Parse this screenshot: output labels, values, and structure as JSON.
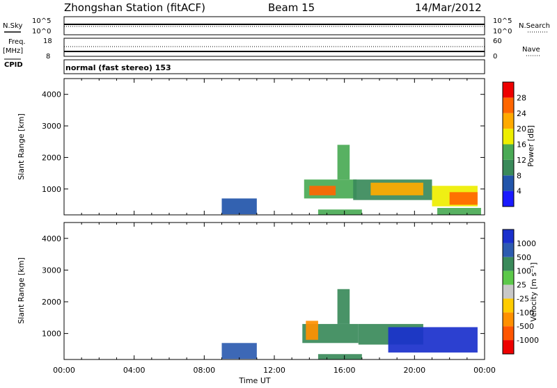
{
  "header": {
    "station": "Zhongshan Station (fitACF)",
    "beam": "Beam 15",
    "date": "14/Mar/2012"
  },
  "status_panels": {
    "nsky_label": "N.Sky",
    "noise_ticks": [
      "10^5",
      "10^0"
    ],
    "nsearch_label": "N.Search",
    "freq_label_line1": "Freq.",
    "freq_label_line2": "[MHz]",
    "freq_ticks": [
      "18",
      "8"
    ],
    "nave_ticks": [
      "60",
      "0"
    ],
    "nave_label": "Nave",
    "cpid_label": "CPID",
    "cpid_value": "normal (fast stereo) 153"
  },
  "colorbars": {
    "power": {
      "label": "Power [dB]",
      "ticks": [
        "4",
        "8",
        "12",
        "16",
        "20",
        "24",
        "28"
      ],
      "colors": [
        "#1a1aff",
        "#2255aa",
        "#3a8a5a",
        "#4aaa55",
        "#eeee00",
        "#ffaa00",
        "#ff6600",
        "#ee0000"
      ]
    },
    "velocity": {
      "label": "Velocity [m s⁻¹]",
      "ticks": [
        "1000",
        "500",
        "100",
        "25",
        "-25",
        "-100",
        "-500",
        "-1000"
      ],
      "colors": [
        "#1a30cc",
        "#2d5bb0",
        "#3a8a5a",
        "#5cc84a",
        "#c8c8c8",
        "#ffcc00",
        "#ff9000",
        "#ff5500",
        "#ee0000"
      ]
    }
  },
  "axes": {
    "ylabel": "Slant Range [km]",
    "xlabel": "Time UT",
    "yticks": [
      "1000",
      "2000",
      "3000",
      "4000"
    ],
    "xticks": [
      "00:00",
      "04:00",
      "08:00",
      "12:00",
      "16:00",
      "20:00",
      "00:00"
    ]
  },
  "chart_data": [
    {
      "type": "heatmap",
      "name": "power",
      "xlabel": "Time UT",
      "ylabel": "Slant Range [km]",
      "xlim": [
        0,
        24
      ],
      "ylim": [
        180,
        4500
      ],
      "colorbar": "Power [dB]",
      "blocks": [
        {
          "t0": 13.7,
          "t1": 16.7,
          "r0": 700,
          "r1": 1300,
          "v": 14
        },
        {
          "t0": 14.0,
          "t1": 15.5,
          "r0": 800,
          "r1": 1100,
          "v": 24
        },
        {
          "t0": 16.5,
          "t1": 21.0,
          "r0": 650,
          "r1": 1300,
          "v": 10
        },
        {
          "t0": 17.5,
          "t1": 20.5,
          "r0": 800,
          "r1": 1200,
          "v": 22
        },
        {
          "t0": 21.0,
          "t1": 23.6,
          "r0": 450,
          "r1": 1100,
          "v": 16
        },
        {
          "t0": 22.0,
          "t1": 23.6,
          "r0": 500,
          "r1": 900,
          "v": 26
        },
        {
          "t0": 15.6,
          "t1": 16.3,
          "r0": 1300,
          "r1": 2400,
          "v": 12
        },
        {
          "t0": 14.5,
          "t1": 17.0,
          "r0": 180,
          "r1": 350,
          "v": 12
        },
        {
          "t0": 21.3,
          "t1": 23.8,
          "r0": 180,
          "r1": 400,
          "v": 12
        },
        {
          "t0": 9.0,
          "t1": 11.0,
          "r0": 200,
          "r1": 700,
          "v": 6
        }
      ]
    },
    {
      "type": "heatmap",
      "name": "velocity",
      "xlabel": "Time UT",
      "ylabel": "Slant Range [km]",
      "xlim": [
        0,
        24
      ],
      "ylim": [
        180,
        4500
      ],
      "colorbar": "Velocity [m s⁻¹]",
      "blocks": [
        {
          "t0": 13.6,
          "t1": 16.8,
          "r0": 700,
          "r1": 1300,
          "v": 100
        },
        {
          "t0": 13.8,
          "t1": 14.5,
          "r0": 800,
          "r1": 1400,
          "v": -500
        },
        {
          "t0": 16.8,
          "t1": 20.5,
          "r0": 650,
          "r1": 1300,
          "v": 100
        },
        {
          "t0": 18.5,
          "t1": 23.6,
          "r0": 400,
          "r1": 1200,
          "v": 1000
        },
        {
          "t0": 15.6,
          "t1": 16.3,
          "r0": 1300,
          "r1": 2400,
          "v": 100
        },
        {
          "t0": 14.5,
          "t1": 17.0,
          "r0": 180,
          "r1": 350,
          "v": 100
        },
        {
          "t0": 9.0,
          "t1": 11.0,
          "r0": 200,
          "r1": 700,
          "v": 500
        }
      ]
    }
  ]
}
